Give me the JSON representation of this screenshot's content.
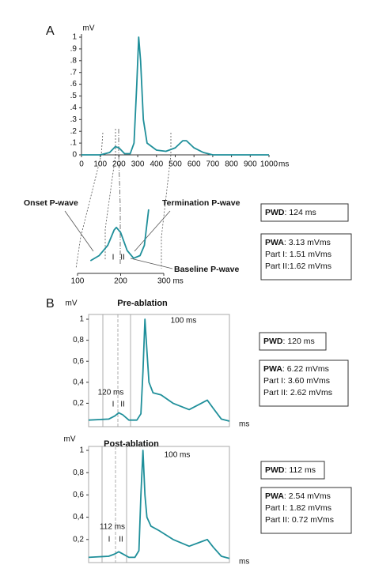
{
  "panels": [
    "A",
    "B"
  ],
  "chart_data": [
    {
      "type": "line",
      "y_label": "mV",
      "x_label": "ms",
      "x": [
        0,
        100,
        150,
        180,
        200,
        230,
        260,
        280,
        295,
        305,
        315,
        330,
        350,
        400,
        450,
        500,
        540,
        560,
        600,
        650,
        700,
        1000
      ],
      "series": [
        {
          "color": "#1f8f9a",
          "values": [
            0,
            0,
            0.02,
            0.07,
            0.06,
            0.01,
            0.01,
            0.1,
            0.6,
            1.0,
            0.8,
            0.3,
            0.1,
            0.04,
            0.03,
            0.06,
            0.12,
            0.12,
            0.06,
            0.02,
            0,
            0
          ]
        }
      ],
      "xlim": [
        0,
        1000
      ],
      "ylim": [
        0,
        1
      ],
      "xticks": [
        0,
        100,
        200,
        300,
        400,
        500,
        600,
        700,
        800,
        900,
        1000
      ],
      "yticks": [
        0,
        {
          "value": 0.1,
          "label": ".1"
        },
        {
          "value": 0.2,
          "label": ".2"
        },
        {
          "value": 0.3,
          "label": ".3"
        },
        {
          "value": 0.4,
          "label": ".4"
        },
        {
          "value": 0.5,
          "label": ".5"
        },
        {
          "value": 0.6,
          "label": ".6"
        },
        {
          "value": 0.7,
          "label": ".7"
        },
        {
          "value": 0.8,
          "label": ".8"
        },
        {
          "value": 0.9,
          "label": ".9"
        },
        1
      ]
    },
    {
      "type": "line",
      "x": [
        130,
        150,
        170,
        185,
        190,
        200,
        215,
        230,
        245,
        255,
        265
      ],
      "series": [
        {
          "color": "#1f8f9a",
          "values": [
            0,
            0.01,
            0.03,
            0.06,
            0.065,
            0.055,
            0.02,
            0.005,
            0.01,
            0.03,
            0.1
          ]
        }
      ],
      "xlim": [
        100,
        300
      ],
      "ylim": [
        0,
        0.1
      ],
      "xticks": [
        100,
        200,
        {
          "value": 300,
          "label": "300 ms"
        }
      ],
      "annotations": [
        "Onset P-wave",
        "Termination P-wave",
        "Baseline P-wave",
        "I",
        "II"
      ]
    },
    {
      "type": "line",
      "title": "Pre-ablation",
      "y_label": "mV",
      "x_label": "ms",
      "x": [
        0,
        100,
        130,
        150,
        170,
        200,
        240,
        260,
        270,
        280,
        290,
        300,
        320,
        360,
        420,
        500,
        560,
        590,
        620,
        660,
        700
      ],
      "series": [
        {
          "color": "#1f8f9a",
          "values": [
            0.04,
            0.05,
            0.08,
            0.11,
            0.09,
            0.04,
            0.04,
            0.1,
            0.5,
            1.0,
            0.7,
            0.4,
            0.3,
            0.28,
            0.2,
            0.14,
            0.2,
            0.23,
            0.15,
            0.05,
            0.03
          ]
        }
      ],
      "xlim": [
        0,
        700
      ],
      "ylim": [
        0,
        1
      ],
      "yticks": [
        {
          "value": 0.2,
          "label": "0,2"
        },
        {
          "value": 0.4,
          "label": "0,4"
        },
        {
          "value": 0.6,
          "label": "0,6"
        },
        {
          "value": 0.8,
          "label": "0,8"
        },
        1
      ],
      "annotations": [
        "120 ms",
        "I",
        "II",
        "100 ms"
      ]
    },
    {
      "type": "line",
      "title": "Post-ablation",
      "y_label": "mV",
      "x_label": "ms",
      "x": [
        0,
        100,
        130,
        150,
        170,
        200,
        230,
        250,
        260,
        270,
        280,
        290,
        310,
        350,
        420,
        500,
        560,
        590,
        620,
        660,
        700
      ],
      "series": [
        {
          "color": "#1f8f9a",
          "values": [
            0.04,
            0.05,
            0.07,
            0.09,
            0.07,
            0.04,
            0.04,
            0.1,
            0.6,
            1.0,
            0.6,
            0.4,
            0.32,
            0.28,
            0.2,
            0.14,
            0.18,
            0.2,
            0.13,
            0.05,
            0.03
          ]
        }
      ],
      "xlim": [
        0,
        700
      ],
      "ylim": [
        0,
        1
      ],
      "yticks": [
        {
          "value": 0.2,
          "label": "0,2"
        },
        {
          "value": 0.4,
          "label": "0,4"
        },
        {
          "value": 0.6,
          "label": "0,6"
        },
        {
          "value": 0.8,
          "label": "0,8"
        },
        1
      ],
      "annotations": [
        "112 ms",
        "I",
        "II",
        "100 ms"
      ]
    }
  ],
  "info_boxes": [
    {
      "lines": [
        {
          "bold": "PWD",
          "text": ": 124 ms"
        }
      ]
    },
    {
      "lines": [
        {
          "bold": "PWA",
          "text": ": 3.13 mVms"
        },
        {
          "text": "Part I: 1.51 mVms"
        },
        {
          "text": "Part II:1.62 mVms"
        }
      ]
    },
    {
      "lines": [
        {
          "bold": "PWD",
          "text": ": 120 ms"
        }
      ]
    },
    {
      "lines": [
        {
          "bold": "PWA",
          "text": ": 6.22 mVms"
        },
        {
          "text": "Part I: 3.60 mVms"
        },
        {
          "text": "Part II: 2.62 mVms"
        }
      ]
    },
    {
      "lines": [
        {
          "bold": "PWD",
          "text": ": 112 ms"
        }
      ]
    },
    {
      "lines": [
        {
          "bold": "PWA",
          "text": ": 2.54 mVms"
        },
        {
          "text": "Part I: 1.82 mVms"
        },
        {
          "text": "Part II: 0.72 mVms"
        }
      ]
    }
  ]
}
